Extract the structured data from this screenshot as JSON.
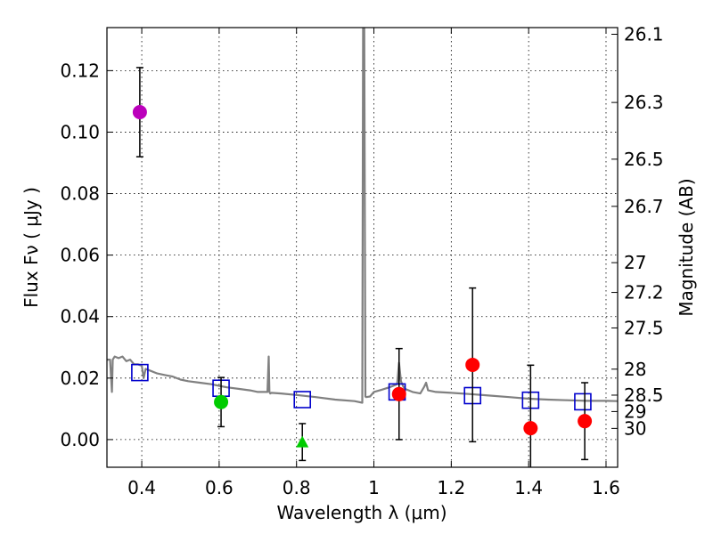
{
  "chart_data": {
    "type": "scatter",
    "xlabel": "Wavelength  λ (μm)",
    "ylabel": "Flux  Fν  ( μJy )",
    "ylabel_right": "Magnitude (AB)",
    "xlim": [
      0.31,
      1.63
    ],
    "ylim": [
      -0.009,
      0.134
    ],
    "grid": true,
    "x_ticks": [
      {
        "value": 0.4,
        "label": "0.4"
      },
      {
        "value": 0.6,
        "label": "0.6"
      },
      {
        "value": 0.8,
        "label": "0.8"
      },
      {
        "value": 1.0,
        "label": "1"
      },
      {
        "value": 1.2,
        "label": "1.2"
      },
      {
        "value": 1.4,
        "label": "1.4"
      },
      {
        "value": 1.6,
        "label": "1.6"
      }
    ],
    "y_ticks": [
      {
        "value": 0.0,
        "label": "0.00"
      },
      {
        "value": 0.02,
        "label": "0.02"
      },
      {
        "value": 0.04,
        "label": "0.04"
      },
      {
        "value": 0.06,
        "label": "0.06"
      },
      {
        "value": 0.08,
        "label": "0.08"
      },
      {
        "value": 0.1,
        "label": "0.10"
      },
      {
        "value": 0.12,
        "label": "0.12"
      }
    ],
    "mag_ticks": [
      {
        "value": 26.1,
        "label": "26.1"
      },
      {
        "value": 26.3,
        "label": "26.3"
      },
      {
        "value": 26.5,
        "label": "26.5"
      },
      {
        "value": 26.7,
        "label": "26.7"
      },
      {
        "value": 27.0,
        "label": "27"
      },
      {
        "value": 27.2,
        "label": "27.2"
      },
      {
        "value": 27.5,
        "label": "27.5"
      },
      {
        "value": 28.0,
        "label": "28"
      },
      {
        "value": 28.5,
        "label": "28.5"
      },
      {
        "value": 29.0,
        "label": "29"
      },
      {
        "value": 30.0,
        "label": "30"
      }
    ],
    "series": [
      {
        "name": "model-sed",
        "kind": "line",
        "color": "#808080",
        "x": [
          0.31,
          0.318,
          0.323,
          0.325,
          0.33,
          0.34,
          0.35,
          0.36,
          0.37,
          0.38,
          0.39,
          0.4,
          0.405,
          0.41,
          0.42,
          0.44,
          0.46,
          0.48,
          0.5,
          0.52,
          0.55,
          0.58,
          0.6,
          0.62,
          0.65,
          0.68,
          0.7,
          0.725,
          0.728,
          0.73,
          0.732,
          0.735,
          0.76,
          0.8,
          0.85,
          0.9,
          0.95,
          0.97,
          0.972,
          0.975,
          0.978,
          0.98,
          0.99,
          1.0,
          1.02,
          1.04,
          1.06,
          1.065,
          1.07,
          1.075,
          1.08,
          1.1,
          1.12,
          1.13,
          1.135,
          1.14,
          1.16,
          1.2,
          1.25,
          1.3,
          1.35,
          1.4,
          1.45,
          1.5,
          1.55,
          1.6,
          1.63
        ],
        "y": [
          0.026,
          0.026,
          0.0155,
          0.026,
          0.027,
          0.0265,
          0.027,
          0.0255,
          0.026,
          0.0245,
          0.0245,
          0.024,
          0.02,
          0.023,
          0.0225,
          0.0215,
          0.021,
          0.0205,
          0.0195,
          0.019,
          0.0185,
          0.018,
          0.0175,
          0.017,
          0.0165,
          0.016,
          0.0155,
          0.0155,
          0.027,
          0.0155,
          0.015,
          0.0152,
          0.015,
          0.0145,
          0.0138,
          0.013,
          0.0125,
          0.012,
          0.134,
          0.134,
          0.014,
          0.0138,
          0.014,
          0.0155,
          0.0162,
          0.017,
          0.018,
          0.025,
          0.019,
          0.0175,
          0.0165,
          0.0155,
          0.015,
          0.0172,
          0.0185,
          0.016,
          0.0155,
          0.0152,
          0.0148,
          0.0143,
          0.0138,
          0.0133,
          0.013,
          0.0128,
          0.0126,
          0.0126,
          0.0125
        ]
      },
      {
        "name": "model-bandpass",
        "kind": "markers",
        "marker": "open-square",
        "color": "#0000cc",
        "x": [
          0.395,
          0.605,
          0.815,
          1.06,
          1.255,
          1.405,
          1.54
        ],
        "y": [
          0.0218,
          0.0167,
          0.013,
          0.0155,
          0.0143,
          0.0128,
          0.0123
        ]
      },
      {
        "name": "observed-magenta",
        "kind": "markers",
        "marker": "circle",
        "color": "#bb00bb",
        "x": [
          0.395
        ],
        "y": [
          0.1065
        ],
        "yerr": [
          0.0145
        ]
      },
      {
        "name": "observed-green",
        "kind": "markers",
        "marker": "circle",
        "color": "#00cc00",
        "x": [
          0.605
        ],
        "y": [
          0.0122
        ],
        "yerr": [
          0.008
        ]
      },
      {
        "name": "upper-limit-green",
        "kind": "markers",
        "marker": "triangle",
        "color": "#00cc00",
        "x": [
          0.815
        ],
        "y": [
          -0.0008
        ],
        "yerr": [
          0.006
        ]
      },
      {
        "name": "observed-red",
        "kind": "markers",
        "marker": "circle",
        "color": "#ff0000",
        "x": [
          1.065,
          1.255,
          1.405,
          1.545
        ],
        "y": [
          0.0148,
          0.0243,
          0.0037,
          0.006
        ],
        "yerr": [
          0.0148,
          0.025,
          0.0205,
          0.0125
        ]
      }
    ]
  }
}
